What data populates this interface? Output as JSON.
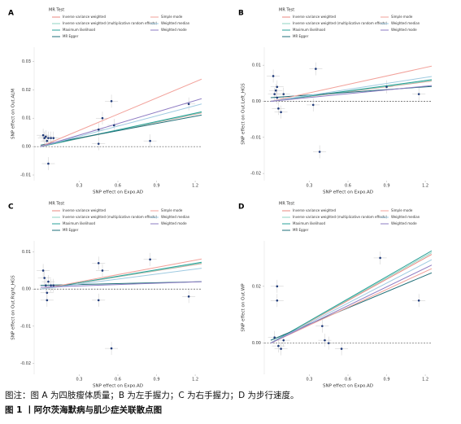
{
  "chart_data": [
    {
      "type": "scatter",
      "panel": "A",
      "legend_title": "MR Test",
      "xlabel": "SNP effect on Expo.AD",
      "ylabel": "SNP effect on Out.ALM",
      "xlim": [
        -0.05,
        1.25
      ],
      "xticks": [
        0.3,
        0.6,
        0.9,
        1.2
      ],
      "ylim": [
        -0.012,
        0.035
      ],
      "yticks": [
        -0.01,
        {
          "value": 0,
          "label": "0.00"
        },
        0.01,
        0.02,
        0.03
      ],
      "points": {
        "x": [
          0.02,
          0.03,
          0.04,
          0.05,
          0.06,
          0.08,
          0.1,
          0.06,
          0.45,
          0.48,
          0.55,
          0.57,
          0.45,
          0.85,
          1.15
        ],
        "y": [
          0.004,
          0.003,
          0.0035,
          0.002,
          0.003,
          0.003,
          0.003,
          -0.006,
          0.006,
          0.01,
          0.016,
          0.0075,
          0.001,
          0.002,
          0.015
        ]
      },
      "series": [
        {
          "name": "Inverse variance weighted",
          "color": "#e8877f",
          "slope": 0.0095,
          "intercept": 0
        },
        {
          "name": "Inverse variance weighted (multiplicative random effects)",
          "color": "#8fd3c1",
          "slope": 0.0096,
          "intercept": 0
        },
        {
          "name": "Maximum likelihood",
          "color": "#2aa198",
          "slope": 0.0098,
          "intercept": 0
        },
        {
          "name": "MR Egger",
          "color": "#1f6f78",
          "slope": 0.0085,
          "intercept": 0.0005
        },
        {
          "name": "Simple mode",
          "color": "#f2a19a",
          "slope": 0.019,
          "intercept": 0
        },
        {
          "name": "Weighted median",
          "color": "#9ecae1",
          "slope": 0.012,
          "intercept": 0
        },
        {
          "name": "Weighted mode",
          "color": "#8e7cc3",
          "slope": 0.0135,
          "intercept": 0
        }
      ]
    },
    {
      "type": "scatter",
      "panel": "B",
      "legend_title": "MR Test",
      "xlabel": "SNP effect on Expo.AD",
      "ylabel": "SNP effect on Out.Left_HGS",
      "xlim": [
        -0.05,
        1.25
      ],
      "xticks": [
        0.3,
        0.6,
        0.9,
        1.2
      ],
      "ylim": [
        -0.022,
        0.015
      ],
      "yticks": [
        -0.02,
        -0.01,
        {
          "value": 0,
          "label": "0.00"
        },
        0.01
      ],
      "points": {
        "x": [
          0.02,
          0.03,
          0.04,
          0.05,
          0.06,
          0.08,
          0.1,
          0.05,
          0.35,
          0.33,
          0.38,
          0.9,
          1.15
        ],
        "y": [
          0.007,
          0.002,
          0.003,
          0.001,
          -0.002,
          -0.003,
          0.002,
          0.004,
          0.009,
          -0.001,
          -0.014,
          0.004,
          0.002
        ]
      },
      "series": [
        {
          "name": "Inverse variance weighted",
          "color": "#e8877f",
          "slope": 0.0045,
          "intercept": 0
        },
        {
          "name": "Inverse variance weighted (multiplicative random effects)",
          "color": "#8fd3c1",
          "slope": 0.0046,
          "intercept": 0
        },
        {
          "name": "Maximum likelihood",
          "color": "#2aa198",
          "slope": 0.0048,
          "intercept": 0
        },
        {
          "name": "MR Egger",
          "color": "#1f6f78",
          "slope": 0.0025,
          "intercept": 0.001
        },
        {
          "name": "Simple mode",
          "color": "#f2a19a",
          "slope": 0.0078,
          "intercept": 0
        },
        {
          "name": "Weighted median",
          "color": "#9ecae1",
          "slope": 0.0055,
          "intercept": 0
        },
        {
          "name": "Weighted mode",
          "color": "#8e7cc3",
          "slope": 0.0035,
          "intercept": 0
        }
      ]
    },
    {
      "type": "scatter",
      "panel": "C",
      "legend_title": "MR Test",
      "xlabel": "SNP effect on Expo.AD",
      "ylabel": "SNP effect on Out.Right_HGS",
      "xlim": [
        -0.05,
        1.25
      ],
      "xticks": [
        0.3,
        0.6,
        0.9,
        1.2
      ],
      "ylim": [
        -0.023,
        0.013
      ],
      "yticks": [
        -0.02,
        -0.01,
        {
          "value": 0,
          "label": "0.00"
        },
        0.01
      ],
      "points": {
        "x": [
          0.02,
          0.03,
          0.04,
          0.05,
          0.06,
          0.08,
          0.1,
          0.05,
          0.45,
          0.48,
          0.45,
          0.55,
          0.85,
          1.15
        ],
        "y": [
          0.005,
          0.003,
          0.001,
          -0.001,
          0.002,
          0.001,
          0.001,
          -0.003,
          0.007,
          0.005,
          -0.003,
          -0.016,
          0.008,
          -0.002
        ]
      },
      "series": [
        {
          "name": "Inverse variance weighted",
          "color": "#e8877f",
          "slope": 0.0055,
          "intercept": 0
        },
        {
          "name": "Inverse variance weighted (multiplicative random effects)",
          "color": "#8fd3c1",
          "slope": 0.0056,
          "intercept": 0
        },
        {
          "name": "Maximum likelihood",
          "color": "#2aa198",
          "slope": 0.0058,
          "intercept": 0
        },
        {
          "name": "MR Egger",
          "color": "#1f6f78",
          "slope": 0.0008,
          "intercept": 0.001
        },
        {
          "name": "Simple mode",
          "color": "#f2a19a",
          "slope": 0.0065,
          "intercept": 0
        },
        {
          "name": "Weighted median",
          "color": "#9ecae1",
          "slope": 0.0045,
          "intercept": 0
        },
        {
          "name": "Weighted mode",
          "color": "#8e7cc3",
          "slope": 0.0012,
          "intercept": 0.0005
        }
      ]
    },
    {
      "type": "scatter",
      "panel": "D",
      "legend_title": "MR Test",
      "xlabel": "SNP effect on Expo.AD",
      "ylabel": "SNP effect on Out.WP",
      "xlim": [
        -0.05,
        1.25
      ],
      "xticks": [
        0.3,
        0.6,
        0.9,
        1.2
      ],
      "ylim": [
        -0.011,
        0.036
      ],
      "yticks": [
        {
          "value": 0,
          "label": "0.00"
        },
        0.02
      ],
      "points": {
        "x": [
          0.05,
          0.05,
          0.03,
          0.06,
          0.08,
          0.1,
          0.4,
          0.42,
          0.45,
          0.55,
          0.85,
          1.15
        ],
        "y": [
          0.02,
          0.015,
          0.002,
          -0.001,
          -0.002,
          0.001,
          0.006,
          0.001,
          0.0,
          -0.002,
          0.03,
          0.015
        ]
      },
      "series": [
        {
          "name": "Inverse variance weighted",
          "color": "#e8877f",
          "slope": 0.025,
          "intercept": 0
        },
        {
          "name": "Inverse variance weighted (multiplicative random effects)",
          "color": "#8fd3c1",
          "slope": 0.0255,
          "intercept": 0
        },
        {
          "name": "Maximum likelihood",
          "color": "#2aa198",
          "slope": 0.026,
          "intercept": 0
        },
        {
          "name": "MR Egger",
          "color": "#1f6f78",
          "slope": 0.019,
          "intercept": 0.001
        },
        {
          "name": "Simple mode",
          "color": "#f2a19a",
          "slope": 0.021,
          "intercept": 0
        },
        {
          "name": "Weighted median",
          "color": "#9ecae1",
          "slope": 0.0235,
          "intercept": 0
        },
        {
          "name": "Weighted mode",
          "color": "#8e7cc3",
          "slope": 0.022,
          "intercept": 0
        }
      ]
    }
  ],
  "caption": "图注：图 A 为四肢瘦体质量；B 为左手握力；C 为右手握力；D 为步行速度。",
  "figure_title": "图 1 丨阿尔茨海默病与肌少症关联散点图"
}
